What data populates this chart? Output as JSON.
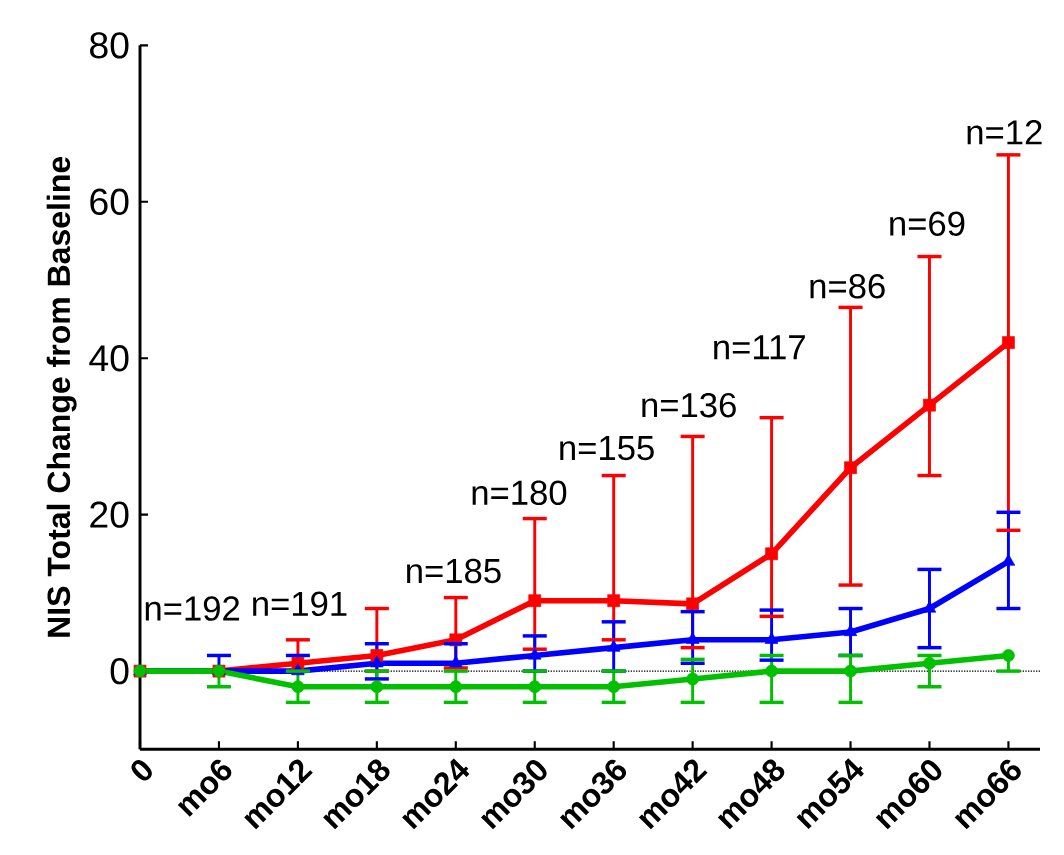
{
  "chart_data": {
    "type": "line",
    "ylabel": "NIS Total Change from Baseline",
    "categories": [
      "0",
      "mo6",
      "mo12",
      "mo18",
      "mo24",
      "mo30",
      "mo36",
      "mo42",
      "mo48",
      "mo54",
      "mo60",
      "mo66"
    ],
    "ylim": [
      -10,
      80
    ],
    "yticks": [
      0,
      20,
      40,
      60,
      80
    ],
    "grid": false,
    "series": [
      {
        "color": "#ff0000",
        "marker": "square",
        "values": [
          0,
          0,
          1,
          2,
          4,
          9,
          9,
          8.6,
          15,
          26,
          34,
          42
        ],
        "errors": [
          null,
          null,
          [
            1,
            4
          ],
          [
            0,
            8
          ],
          [
            0.4,
            9.4
          ],
          [
            2.8,
            19.5
          ],
          [
            4,
            25
          ],
          [
            3,
            30
          ],
          [
            7,
            32.4
          ],
          [
            11,
            46.5
          ],
          [
            25,
            53
          ],
          [
            18,
            66
          ]
        ]
      },
      {
        "color": "#0000ff",
        "marker": "triangle",
        "values": [
          0,
          0,
          0,
          1,
          1,
          2,
          3,
          4,
          4,
          5,
          8,
          14
        ],
        "errors": [
          null,
          [
            0,
            2
          ],
          [
            0,
            2
          ],
          [
            -1,
            3.5
          ],
          [
            1,
            3.5
          ],
          [
            0,
            4.5
          ],
          [
            0,
            6.3
          ],
          [
            1,
            7.6
          ],
          [
            1.4,
            7.8
          ],
          [
            2,
            8
          ],
          [
            3,
            13
          ],
          [
            8,
            20.3
          ]
        ]
      },
      {
        "color": "#00c000",
        "marker": "circle",
        "values": [
          0,
          0,
          -2,
          -2,
          -2,
          -2,
          -2,
          -1,
          0,
          0,
          1,
          2
        ],
        "errors": [
          null,
          [
            -2,
            0
          ],
          [
            -4,
            0
          ],
          [
            -4,
            0
          ],
          [
            -4,
            0
          ],
          [
            -4,
            0
          ],
          [
            -4,
            0
          ],
          [
            -4,
            1.5
          ],
          [
            -4,
            2
          ],
          [
            -4,
            2
          ],
          [
            -2,
            2
          ],
          [
            0,
            2
          ]
        ]
      }
    ],
    "ref_lines": [
      {
        "axis": "y",
        "value": 0,
        "line_style": "dotted",
        "color": "#000000"
      }
    ],
    "annotations": [
      "n=192",
      "n=191",
      "n=185",
      "n=180",
      "n=155",
      "n=136",
      "n=117",
      "n=86",
      "n=69",
      "n=12"
    ]
  }
}
